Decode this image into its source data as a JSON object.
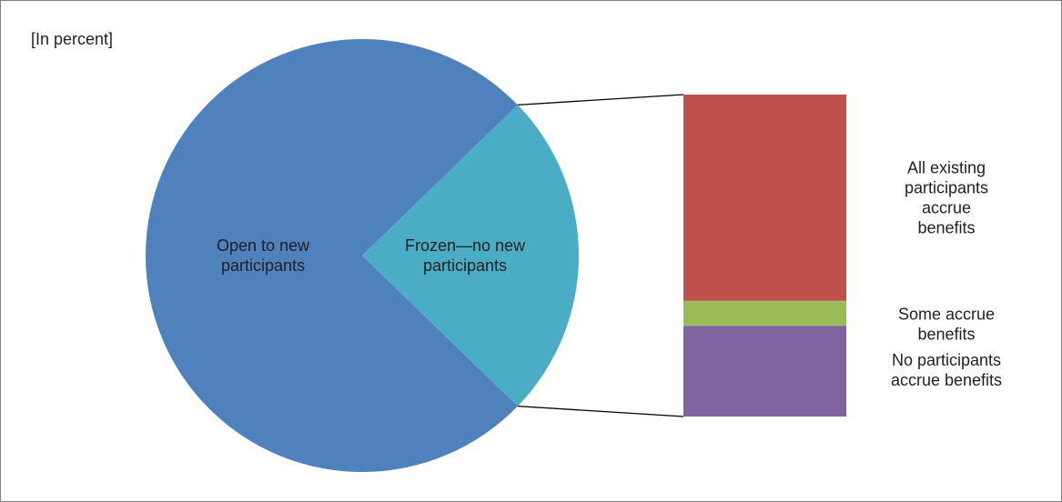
{
  "unit_note": "[In percent]",
  "chart_data": {
    "type": "bar-of-pie",
    "unit": "[In percent]",
    "pie": {
      "slices": [
        {
          "label": "Open to new participants",
          "value": 75.5,
          "color": "#4f81bd"
        },
        {
          "label": "Frozen—no new participants",
          "value": 24.5,
          "color": "#4bacc6"
        }
      ]
    },
    "bar": {
      "breakdown_of": "Frozen—no new participants",
      "segments": [
        {
          "label": "All existing participants accrue benefits",
          "value": 15.7,
          "color": "#c0504d"
        },
        {
          "label": "Some accrue benefits",
          "value": 1.9,
          "color": "#9bbb59"
        },
        {
          "label": "No participants accrue benefits",
          "value": 6.9,
          "color": "#8064a2"
        }
      ]
    }
  }
}
